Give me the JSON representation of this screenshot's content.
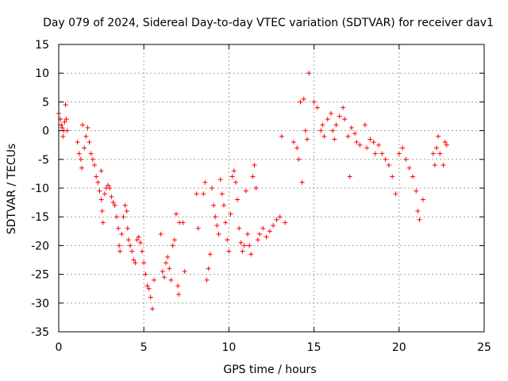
{
  "chart_data": {
    "type": "scatter",
    "title": "Day 079 of 2024, Sidereal Day-to-day VTEC variation (SDTVAR) for receiver dav1",
    "xlabel": "GPS time / hours",
    "ylabel": "SDTVAR / TECUs",
    "xlim": [
      0,
      25
    ],
    "ylim": [
      -35,
      15
    ],
    "xticks": [
      0,
      5,
      10,
      15,
      20,
      25
    ],
    "yticks": [
      -35,
      -30,
      -25,
      -20,
      -15,
      -10,
      -5,
      0,
      5,
      10,
      15
    ],
    "grid": true,
    "marker": "plus",
    "color": "#ff0000",
    "series": [
      {
        "name": "SDTVAR",
        "points": [
          [
            0.0,
            3.0
          ],
          [
            0.1,
            2.0
          ],
          [
            0.15,
            1.0
          ],
          [
            0.2,
            0.5
          ],
          [
            0.25,
            -1.0
          ],
          [
            0.3,
            0.0
          ],
          [
            0.35,
            1.5
          ],
          [
            0.4,
            4.5
          ],
          [
            0.45,
            2.0
          ],
          [
            0.5,
            0.0
          ],
          [
            1.1,
            -2.0
          ],
          [
            1.2,
            -4.0
          ],
          [
            1.3,
            -5.0
          ],
          [
            1.35,
            -6.5
          ],
          [
            1.4,
            1.0
          ],
          [
            1.5,
            -3.0
          ],
          [
            1.6,
            -1.0
          ],
          [
            1.7,
            0.5
          ],
          [
            1.8,
            -2.0
          ],
          [
            1.9,
            -4.0
          ],
          [
            2.0,
            -5.0
          ],
          [
            2.1,
            -6.0
          ],
          [
            2.2,
            -8.0
          ],
          [
            2.3,
            -9.0
          ],
          [
            2.4,
            -10.5
          ],
          [
            2.5,
            -7.0
          ],
          [
            2.5,
            -12.0
          ],
          [
            2.55,
            -14.0
          ],
          [
            2.6,
            -16.0
          ],
          [
            2.7,
            -11.0
          ],
          [
            2.8,
            -10.0
          ],
          [
            2.9,
            -9.5
          ],
          [
            3.0,
            -10.0
          ],
          [
            3.1,
            -11.5
          ],
          [
            3.2,
            -12.5
          ],
          [
            3.3,
            -13.0
          ],
          [
            3.4,
            -15.0
          ],
          [
            3.5,
            -17.0
          ],
          [
            3.55,
            -20.0
          ],
          [
            3.6,
            -21.0
          ],
          [
            3.7,
            -18.0
          ],
          [
            3.8,
            -15.0
          ],
          [
            3.9,
            -13.0
          ],
          [
            4.0,
            -14.0
          ],
          [
            4.05,
            -17.0
          ],
          [
            4.1,
            -19.0
          ],
          [
            4.2,
            -20.0
          ],
          [
            4.3,
            -21.0
          ],
          [
            4.4,
            -22.5
          ],
          [
            4.5,
            -23.0
          ],
          [
            4.6,
            -19.0
          ],
          [
            4.7,
            -18.5
          ],
          [
            4.8,
            -19.5
          ],
          [
            4.9,
            -21.0
          ],
          [
            5.0,
            -23.0
          ],
          [
            5.1,
            -25.0
          ],
          [
            5.2,
            -27.0
          ],
          [
            5.3,
            -27.5
          ],
          [
            5.4,
            -29.0
          ],
          [
            5.5,
            -31.0
          ],
          [
            5.6,
            -26.0
          ],
          [
            6.0,
            -18.0
          ],
          [
            6.1,
            -24.5
          ],
          [
            6.2,
            -25.5
          ],
          [
            6.3,
            -23.0
          ],
          [
            6.4,
            -22.0
          ],
          [
            6.5,
            -24.0
          ],
          [
            6.6,
            -26.0
          ],
          [
            6.7,
            -20.0
          ],
          [
            6.8,
            -19.0
          ],
          [
            6.9,
            -14.5
          ],
          [
            7.0,
            -27.0
          ],
          [
            7.05,
            -28.5
          ],
          [
            7.1,
            -16.0
          ],
          [
            7.3,
            -16.0
          ],
          [
            7.4,
            -24.5
          ],
          [
            8.1,
            -11.0
          ],
          [
            8.2,
            -17.0
          ],
          [
            8.5,
            -11.0
          ],
          [
            8.6,
            -9.0
          ],
          [
            8.7,
            -26.0
          ],
          [
            8.8,
            -24.0
          ],
          [
            8.9,
            -21.5
          ],
          [
            9.0,
            -10.0
          ],
          [
            9.1,
            -13.0
          ],
          [
            9.2,
            -15.0
          ],
          [
            9.3,
            -16.5
          ],
          [
            9.4,
            -18.0
          ],
          [
            9.5,
            -8.5
          ],
          [
            9.6,
            -11.0
          ],
          [
            9.7,
            -13.0
          ],
          [
            9.8,
            -16.0
          ],
          [
            9.9,
            -19.0
          ],
          [
            10.0,
            -21.0
          ],
          [
            10.1,
            -14.5
          ],
          [
            10.2,
            -8.0
          ],
          [
            10.3,
            -7.0
          ],
          [
            10.4,
            -9.0
          ],
          [
            10.5,
            -12.0
          ],
          [
            10.6,
            -17.0
          ],
          [
            10.7,
            -19.5
          ],
          [
            10.8,
            -21.0
          ],
          [
            10.9,
            -20.0
          ],
          [
            11.0,
            -10.5
          ],
          [
            11.1,
            -18.0
          ],
          [
            11.2,
            -20.0
          ],
          [
            11.3,
            -21.5
          ],
          [
            11.4,
            -8.0
          ],
          [
            11.5,
            -6.0
          ],
          [
            11.6,
            -10.0
          ],
          [
            11.7,
            -19.0
          ],
          [
            11.8,
            -18.0
          ],
          [
            12.0,
            -17.0
          ],
          [
            12.2,
            -18.5
          ],
          [
            12.4,
            -17.5
          ],
          [
            12.6,
            -16.5
          ],
          [
            12.8,
            -15.5
          ],
          [
            13.0,
            -15.0
          ],
          [
            13.1,
            -1.0
          ],
          [
            13.3,
            -16.0
          ],
          [
            13.8,
            -2.0
          ],
          [
            14.0,
            -3.0
          ],
          [
            14.1,
            -5.0
          ],
          [
            14.2,
            5.0
          ],
          [
            14.3,
            -9.0
          ],
          [
            14.4,
            5.5
          ],
          [
            14.5,
            0.0
          ],
          [
            14.6,
            -1.5
          ],
          [
            14.7,
            10.0
          ],
          [
            15.0,
            5.0
          ],
          [
            15.2,
            4.0
          ],
          [
            15.4,
            0.0
          ],
          [
            15.5,
            1.0
          ],
          [
            15.6,
            -1.0
          ],
          [
            15.8,
            2.0
          ],
          [
            16.0,
            3.0
          ],
          [
            16.1,
            0.0
          ],
          [
            16.2,
            -1.5
          ],
          [
            16.3,
            1.0
          ],
          [
            16.5,
            2.5
          ],
          [
            16.7,
            4.0
          ],
          [
            16.8,
            2.0
          ],
          [
            17.0,
            -1.0
          ],
          [
            17.1,
            -8.0
          ],
          [
            17.2,
            0.5
          ],
          [
            17.4,
            -0.5
          ],
          [
            17.5,
            -2.0
          ],
          [
            17.7,
            -2.5
          ],
          [
            18.0,
            1.0
          ],
          [
            18.1,
            -3.0
          ],
          [
            18.3,
            -1.5
          ],
          [
            18.5,
            -2.0
          ],
          [
            18.6,
            -4.0
          ],
          [
            18.8,
            -2.5
          ],
          [
            19.0,
            -4.0
          ],
          [
            19.2,
            -5.0
          ],
          [
            19.4,
            -6.0
          ],
          [
            19.6,
            -8.0
          ],
          [
            19.8,
            -11.0
          ],
          [
            20.0,
            -4.0
          ],
          [
            20.2,
            -3.0
          ],
          [
            20.4,
            -5.0
          ],
          [
            20.6,
            -6.5
          ],
          [
            20.8,
            -8.0
          ],
          [
            21.0,
            -10.5
          ],
          [
            21.1,
            -14.0
          ],
          [
            21.2,
            -15.5
          ],
          [
            21.4,
            -12.0
          ],
          [
            22.0,
            -4.0
          ],
          [
            22.1,
            -6.0
          ],
          [
            22.2,
            -3.0
          ],
          [
            22.3,
            -1.0
          ],
          [
            22.4,
            -4.0
          ],
          [
            22.6,
            -6.0
          ],
          [
            22.7,
            -2.0
          ],
          [
            22.8,
            -2.5
          ]
        ]
      }
    ]
  }
}
